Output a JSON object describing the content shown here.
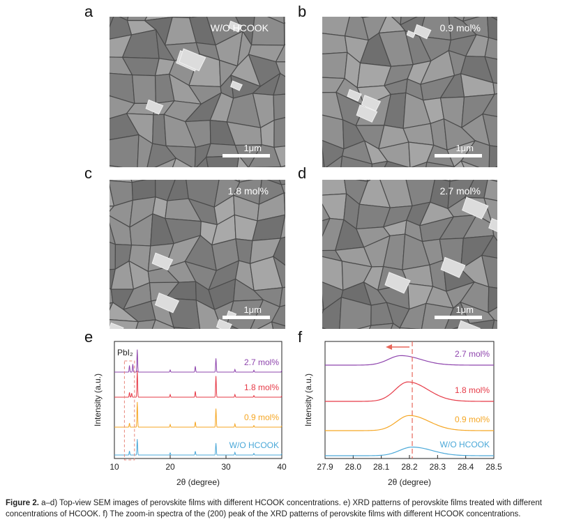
{
  "panels": {
    "a": {
      "letter": "a",
      "label": "W/O HCOOK",
      "scale": "1μm"
    },
    "b": {
      "letter": "b",
      "label": "0.9 mol%",
      "scale": "1μm"
    },
    "c": {
      "letter": "c",
      "label": "1.8 mol%",
      "scale": "1μm"
    },
    "d": {
      "letter": "d",
      "label": "2.7 mol%",
      "scale": "1μm"
    },
    "e": {
      "letter": "e"
    },
    "f": {
      "letter": "f"
    }
  },
  "chart_data": [
    {
      "type": "line",
      "panel": "e",
      "xlabel": "2θ (degree)",
      "ylabel": "Intensity (a.u.)",
      "xlim": [
        10,
        40
      ],
      "xticks": [
        "10",
        "20",
        "30",
        "40"
      ],
      "annotation": "PbI₂",
      "series": [
        {
          "name": "2.7 mol%",
          "color": "#8e44ad",
          "peaks": [
            [
              12.7,
              0.25
            ],
            [
              13.3,
              0.3
            ],
            [
              14.1,
              0.85
            ],
            [
              20.0,
              0.08
            ],
            [
              24.5,
              0.22
            ],
            [
              28.2,
              0.52
            ],
            [
              31.6,
              0.1
            ],
            [
              35.0,
              0.07
            ],
            [
              40.0,
              0.06
            ]
          ]
        },
        {
          "name": "1.8 mol%",
          "color": "#e63946",
          "peaks": [
            [
              12.7,
              0.18
            ],
            [
              13.1,
              0.15
            ],
            [
              14.1,
              1.0
            ],
            [
              20.0,
              0.1
            ],
            [
              24.5,
              0.22
            ],
            [
              28.2,
              0.8
            ],
            [
              31.6,
              0.1
            ],
            [
              35.0,
              0.06
            ],
            [
              40.0,
              0.05
            ]
          ]
        },
        {
          "name": "0.9 mol%",
          "color": "#f5a623",
          "peaks": [
            [
              12.7,
              0.15
            ],
            [
              14.1,
              0.95
            ],
            [
              20.0,
              0.1
            ],
            [
              24.5,
              0.2
            ],
            [
              28.2,
              0.7
            ],
            [
              31.6,
              0.12
            ],
            [
              35.0,
              0.06
            ],
            [
              40.0,
              0.05
            ]
          ]
        },
        {
          "name": "W/O HCOOK",
          "color": "#4aa8d8",
          "peaks": [
            [
              12.7,
              0.15
            ],
            [
              14.1,
              0.6
            ],
            [
              20.0,
              0.08
            ],
            [
              24.5,
              0.14
            ],
            [
              28.2,
              0.45
            ],
            [
              31.6,
              0.1
            ],
            [
              35.0,
              0.06
            ],
            [
              40.0,
              0.05
            ]
          ]
        }
      ]
    },
    {
      "type": "line",
      "panel": "f",
      "xlabel": "2θ (degree)",
      "ylabel": "Intensity (a.u.)",
      "xlim": [
        27.9,
        28.5
      ],
      "xticks": [
        "27.9",
        "28.0",
        "28.1",
        "28.2",
        "28.3",
        "28.4",
        "28.5"
      ],
      "reference_line_x": 28.21,
      "series": [
        {
          "name": "2.7 mol%",
          "color": "#8e44ad",
          "peak_x": 28.17,
          "height": 0.22
        },
        {
          "name": "1.8 mol%",
          "color": "#e63946",
          "peak_x": 28.195,
          "height": 0.45
        },
        {
          "name": "0.9 mol%",
          "color": "#f5a623",
          "peak_x": 28.2,
          "height": 0.35
        },
        {
          "name": "W/O HCOOK",
          "color": "#4aa8d8",
          "peak_x": 28.21,
          "height": 0.2
        }
      ]
    }
  ],
  "caption": {
    "label": "Figure 2.",
    "text": " a–d) Top-view SEM images of perovskite films with different HCOOK concentrations. e) XRD patterns of perovskite films treated with different concentrations of HCOOK. f) The zoom-in spectra of the (200) peak of the XRD patterns of perovskite films with different HCOOK concentrations."
  }
}
